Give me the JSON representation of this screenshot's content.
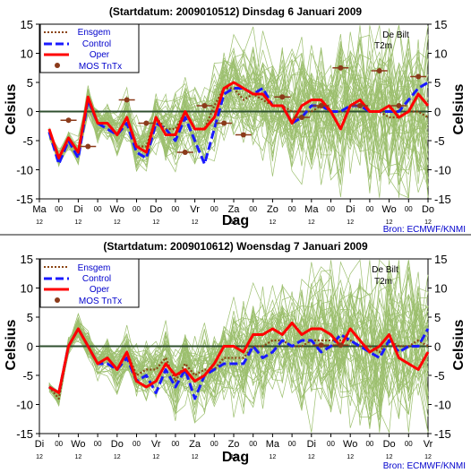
{
  "colors": {
    "ensemble": "#9cbf6e",
    "ensgem": "#8b4513",
    "control": "#1a1aff",
    "oper": "#ff0000",
    "mos": "#8b3a1a",
    "zero_line": "#2f4f2f",
    "source": "#0000cc"
  },
  "chart_data": [
    {
      "type": "line",
      "title": "(Startdatum: 2009010512)   Dinsdag    6 Januari   2009",
      "station": "De Bilt",
      "variable": "T2m",
      "ylabel": "Celsius",
      "xlabel": "Dag",
      "ylim": [
        -15,
        15
      ],
      "yticks": [
        -15,
        -10,
        -5,
        0,
        5,
        10,
        15
      ],
      "xlim": [
        0,
        20
      ],
      "x_tick_labels": [
        "Ma",
        "00",
        "Di",
        "00",
        "Wo",
        "00",
        "Do",
        "00",
        "Vr",
        "00",
        "Za",
        "00",
        "Zo",
        "00",
        "Ma",
        "00",
        "Di",
        "00",
        "Wo",
        "00",
        "Do"
      ],
      "x_tick_sublabels": [
        "12",
        "",
        "12",
        "",
        "12",
        "",
        "12",
        "",
        "12",
        "",
        "12",
        "",
        "12",
        "",
        "12",
        "",
        "12",
        "",
        "12",
        "",
        "12"
      ],
      "source": "Bron: ECMWF/KNMI",
      "legend": [
        "Ensgem",
        "Control",
        "Oper",
        "MOS TnTx"
      ],
      "x": [
        0.5,
        1,
        1.5,
        2,
        2.5,
        3,
        3.5,
        4,
        4.5,
        5,
        5.5,
        6,
        6.5,
        7,
        7.5,
        8,
        8.5,
        9,
        9.5,
        10,
        10.5,
        11,
        11.5,
        12,
        12.5,
        13,
        13.5,
        14,
        14.5,
        15,
        15.5,
        16,
        16.5,
        17,
        17.5,
        18,
        18.5,
        19,
        19.5,
        20
      ],
      "series": [
        {
          "name": "Ensgem",
          "values": [
            -3.5,
            -8,
            -5,
            -7,
            2,
            -2,
            -2,
            -4,
            -1,
            -6,
            -6,
            -1,
            -3,
            -3,
            0,
            -3,
            -3,
            1,
            4,
            4,
            2,
            3,
            2,
            1,
            1,
            0,
            0,
            0,
            1,
            0,
            0,
            1,
            1,
            0,
            0,
            -1,
            -1,
            0,
            0,
            -1
          ]
        },
        {
          "name": "Control",
          "values": [
            -3.5,
            -9,
            -5,
            -8,
            2,
            -2,
            -3,
            -4,
            -2,
            -7,
            -8,
            -2,
            -3,
            -5,
            -1,
            -5,
            -9,
            -3,
            3,
            4,
            4,
            3,
            4,
            1,
            1,
            -2,
            -1,
            1,
            1,
            0,
            0,
            1,
            1,
            0,
            0,
            0,
            0,
            2,
            4,
            5
          ]
        },
        {
          "name": "Oper",
          "values": [
            -3,
            -8,
            -4.5,
            -7,
            2.5,
            -2,
            -2,
            -4,
            -1,
            -6,
            -7,
            -1,
            -4,
            -4,
            0,
            -3,
            -3,
            -1,
            4,
            5,
            4,
            3,
            3,
            1,
            1,
            -2,
            1,
            2,
            2,
            0,
            -3,
            1,
            2,
            0,
            0,
            1,
            -1,
            0,
            3,
            1
          ]
        }
      ],
      "mos_tntx": {
        "x": [
          1.5,
          2.5,
          4.5,
          5.5,
          7.5,
          8.5,
          9.5,
          10.5,
          12.5,
          13.5,
          14.5,
          15.5,
          16.5,
          17.5,
          18.5,
          19.5
        ],
        "values": [
          -1.5,
          -6,
          2,
          -2,
          -7,
          1,
          -2,
          -4,
          2.5,
          -1,
          1,
          7.5,
          1,
          7,
          1,
          6
        ]
      },
      "ensemble_member_count": 50
    },
    {
      "type": "line",
      "title": "(Startdatum: 2009010612)   Woensdag   7 Januari   2009",
      "station": "De Bilt",
      "variable": "T2m",
      "ylabel": "Celsius",
      "xlabel": "Dag",
      "ylim": [
        -15,
        15
      ],
      "yticks": [
        -15,
        -10,
        -5,
        0,
        5,
        10,
        15
      ],
      "xlim": [
        0,
        20
      ],
      "x_tick_labels": [
        "Di",
        "00",
        "Wo",
        "00",
        "Do",
        "00",
        "Vr",
        "00",
        "Za",
        "00",
        "Zo",
        "00",
        "Ma",
        "00",
        "Di",
        "00",
        "Wo",
        "00",
        "Do",
        "00",
        "Vr"
      ],
      "x_tick_sublabels": [
        "12",
        "",
        "12",
        "",
        "12",
        "",
        "12",
        "",
        "12",
        "",
        "12",
        "",
        "12",
        "",
        "12",
        "",
        "12",
        "",
        "12",
        "",
        "12"
      ],
      "source": "Bron: ECMWF/KNMI",
      "legend": [
        "Ensgem",
        "Control",
        "Oper",
        "MOS TnTx"
      ],
      "x": [
        0.5,
        1,
        1.5,
        2,
        2.5,
        3,
        3.5,
        4,
        4.5,
        5,
        5.5,
        6,
        6.5,
        7,
        7.5,
        8,
        8.5,
        9,
        9.5,
        10,
        10.5,
        11,
        11.5,
        12,
        12.5,
        13,
        13.5,
        14,
        14.5,
        15,
        15.5,
        16,
        16.5,
        17,
        17.5,
        18,
        18.5,
        19,
        19.5,
        20
      ],
      "series": [
        {
          "name": "Ensgem",
          "values": [
            -7,
            -9,
            0,
            3,
            0,
            -3,
            -2,
            -4,
            -1,
            -5,
            -4,
            -4,
            -2,
            -6,
            -3,
            -5,
            -4,
            -4,
            -2,
            -2,
            -2,
            0,
            0,
            1,
            1,
            0,
            0,
            1,
            1,
            1,
            1,
            1,
            0,
            0,
            -1,
            1,
            0,
            0,
            1,
            0
          ]
        },
        {
          "name": "Control",
          "values": [
            -7,
            -8,
            0,
            3,
            0,
            -3,
            -3,
            -4,
            -2,
            -6,
            -5,
            -8,
            -4,
            -7,
            -4,
            -9,
            -5,
            -4,
            -3,
            -3,
            -3,
            0,
            -2,
            -1,
            1,
            0,
            1,
            1,
            -1,
            0,
            2,
            1,
            0,
            -1,
            -2,
            1,
            -1,
            0,
            0,
            3
          ]
        },
        {
          "name": "Oper",
          "values": [
            -7,
            -8,
            0,
            3,
            0,
            -3,
            -2,
            -4,
            -1,
            -6,
            -7,
            -6,
            -3,
            -5,
            -4,
            -6,
            -5,
            -3,
            0,
            0,
            -1,
            2,
            2,
            3,
            2,
            4,
            2,
            3,
            3,
            2,
            0,
            3,
            1,
            -1,
            0,
            2,
            -2,
            -3,
            -4,
            -1
          ]
        }
      ],
      "mos_tntx": {
        "x": [
          14.5,
          15.5
        ],
        "values": [
          0.2,
          0.2
        ]
      },
      "ensemble_member_count": 50
    }
  ]
}
